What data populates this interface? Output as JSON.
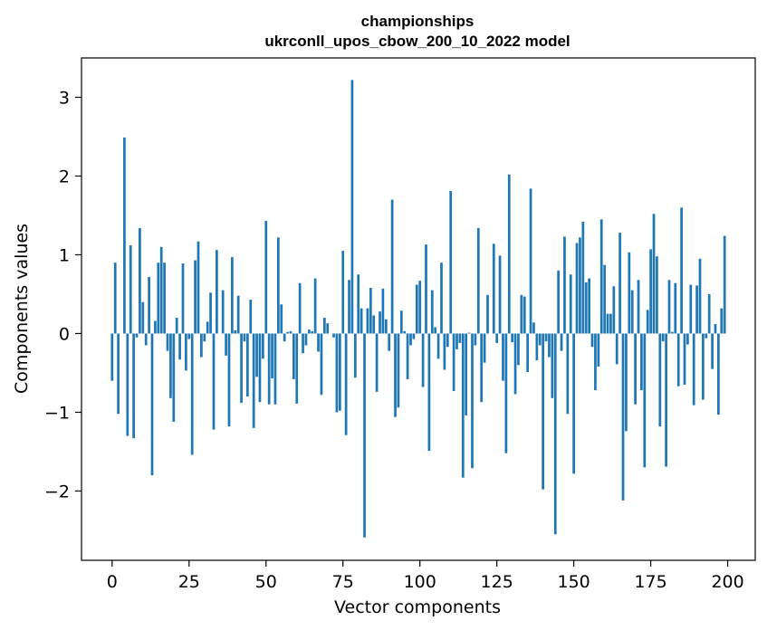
{
  "chart_data": {
    "type": "bar",
    "title": "championships",
    "subtitle": "ukrconll_upos_cbow_200_10_2022 model",
    "xlabel": "Vector components",
    "ylabel": "Components values",
    "xlim": [
      -9.95,
      208.95
    ],
    "ylim": [
      -2.88,
      3.5
    ],
    "xticks": [
      0,
      25,
      50,
      75,
      100,
      125,
      150,
      175,
      200
    ],
    "xtick_labels": [
      "0",
      "25",
      "50",
      "75",
      "100",
      "125",
      "150",
      "175",
      "200"
    ],
    "yticks": [
      -2,
      -1,
      0,
      1,
      2,
      3
    ],
    "ytick_labels": [
      "−2",
      "−1",
      "0",
      "1",
      "2",
      "3"
    ],
    "bar_color": "#1f77b4",
    "grid": false,
    "x": [
      0,
      1,
      2,
      3,
      4,
      5,
      6,
      7,
      8,
      9,
      10,
      11,
      12,
      13,
      14,
      15,
      16,
      17,
      18,
      19,
      20,
      21,
      22,
      23,
      24,
      25,
      26,
      27,
      28,
      29,
      30,
      31,
      32,
      33,
      34,
      35,
      36,
      37,
      38,
      39,
      40,
      41,
      42,
      43,
      44,
      45,
      46,
      47,
      48,
      49,
      50,
      51,
      52,
      53,
      54,
      55,
      56,
      57,
      58,
      59,
      60,
      61,
      62,
      63,
      64,
      65,
      66,
      67,
      68,
      69,
      70,
      71,
      72,
      73,
      74,
      75,
      76,
      77,
      78,
      79,
      80,
      81,
      82,
      83,
      84,
      85,
      86,
      87,
      88,
      89,
      90,
      91,
      92,
      93,
      94,
      95,
      96,
      97,
      98,
      99,
      100,
      101,
      102,
      103,
      104,
      105,
      106,
      107,
      108,
      109,
      110,
      111,
      112,
      113,
      114,
      115,
      116,
      117,
      118,
      119,
      120,
      121,
      122,
      123,
      124,
      125,
      126,
      127,
      128,
      129,
      130,
      131,
      132,
      133,
      134,
      135,
      136,
      137,
      138,
      139,
      140,
      141,
      142,
      143,
      144,
      145,
      146,
      147,
      148,
      149,
      150,
      151,
      152,
      153,
      154,
      155,
      156,
      157,
      158,
      159,
      160,
      161,
      162,
      163,
      164,
      165,
      166,
      167,
      168,
      169,
      170,
      171,
      172,
      173,
      174,
      175,
      176,
      177,
      178,
      179,
      180,
      181,
      182,
      183,
      184,
      185,
      186,
      187,
      188,
      189,
      190,
      191,
      192,
      193,
      194,
      195,
      196,
      197,
      198,
      199
    ],
    "values": [
      -0.6,
      0.9,
      -1.02,
      0.0,
      2.49,
      -1.3,
      1.12,
      -1.33,
      -0.05,
      1.34,
      0.4,
      -0.15,
      0.72,
      -1.8,
      0.16,
      0.9,
      1.1,
      0.9,
      -0.22,
      -0.82,
      -1.12,
      0.2,
      -0.33,
      0.89,
      -0.47,
      -0.07,
      -1.54,
      0.93,
      1.17,
      -0.3,
      -0.1,
      0.15,
      0.52,
      -1.22,
      1.06,
      0.0,
      0.55,
      -0.28,
      -1.18,
      0.97,
      0.04,
      0.48,
      -0.88,
      -0.1,
      -0.8,
      0.43,
      -1.2,
      -0.55,
      -0.87,
      -0.32,
      1.43,
      -0.9,
      -0.57,
      -0.9,
      1.22,
      0.37,
      -0.1,
      0.02,
      0.03,
      -0.58,
      -0.89,
      0.64,
      -0.25,
      -0.15,
      0.05,
      0.03,
      0.7,
      -0.23,
      -0.78,
      0.2,
      0.13,
      0.0,
      -0.05,
      -1.0,
      -0.98,
      1.05,
      -1.29,
      0.68,
      3.22,
      -0.56,
      0.75,
      0.32,
      -2.59,
      0.32,
      0.58,
      0.23,
      -0.74,
      0.28,
      0.57,
      0.18,
      -0.22,
      1.7,
      -1.06,
      -0.94,
      0.29,
      0.03,
      -0.58,
      -0.15,
      -0.07,
      0.62,
      0.67,
      -0.68,
      1.13,
      -1.49,
      0.55,
      0.08,
      -0.32,
      0.9,
      -0.46,
      -0.17,
      1.81,
      -0.73,
      -0.2,
      -0.12,
      -1.83,
      -1.04,
      0.01,
      -1.71,
      -0.15,
      1.34,
      -0.87,
      -0.37,
      0.49,
      0.0,
      1.14,
      -0.12,
      0.99,
      -0.6,
      -1.52,
      2.02,
      -0.11,
      -0.77,
      -0.4,
      0.49,
      0.47,
      -0.49,
      1.84,
      0.14,
      -0.34,
      -0.15,
      -1.98,
      -0.1,
      -0.3,
      -0.82,
      -2.55,
      0.8,
      -0.22,
      1.23,
      -1.02,
      0.75,
      -1.78,
      1.15,
      1.22,
      1.42,
      0.65,
      0.7,
      -0.17,
      -0.72,
      -0.42,
      1.45,
      0.87,
      0.25,
      0.25,
      0.6,
      -0.39,
      1.28,
      -2.12,
      -1.24,
      1.03,
      0.55,
      -0.9,
      0.68,
      -0.72,
      -1.7,
      0.3,
      1.07,
      1.52,
      0.98,
      -1.18,
      -0.1,
      -1.69,
      0.68,
      0.02,
      0.64,
      -0.67,
      1.6,
      -0.65,
      -0.14,
      0.62,
      -0.91,
      0.61,
      0.95,
      -0.84,
      -0.06,
      0.5,
      -0.45,
      0.12,
      -1.03,
      0.32,
      1.24
    ]
  }
}
